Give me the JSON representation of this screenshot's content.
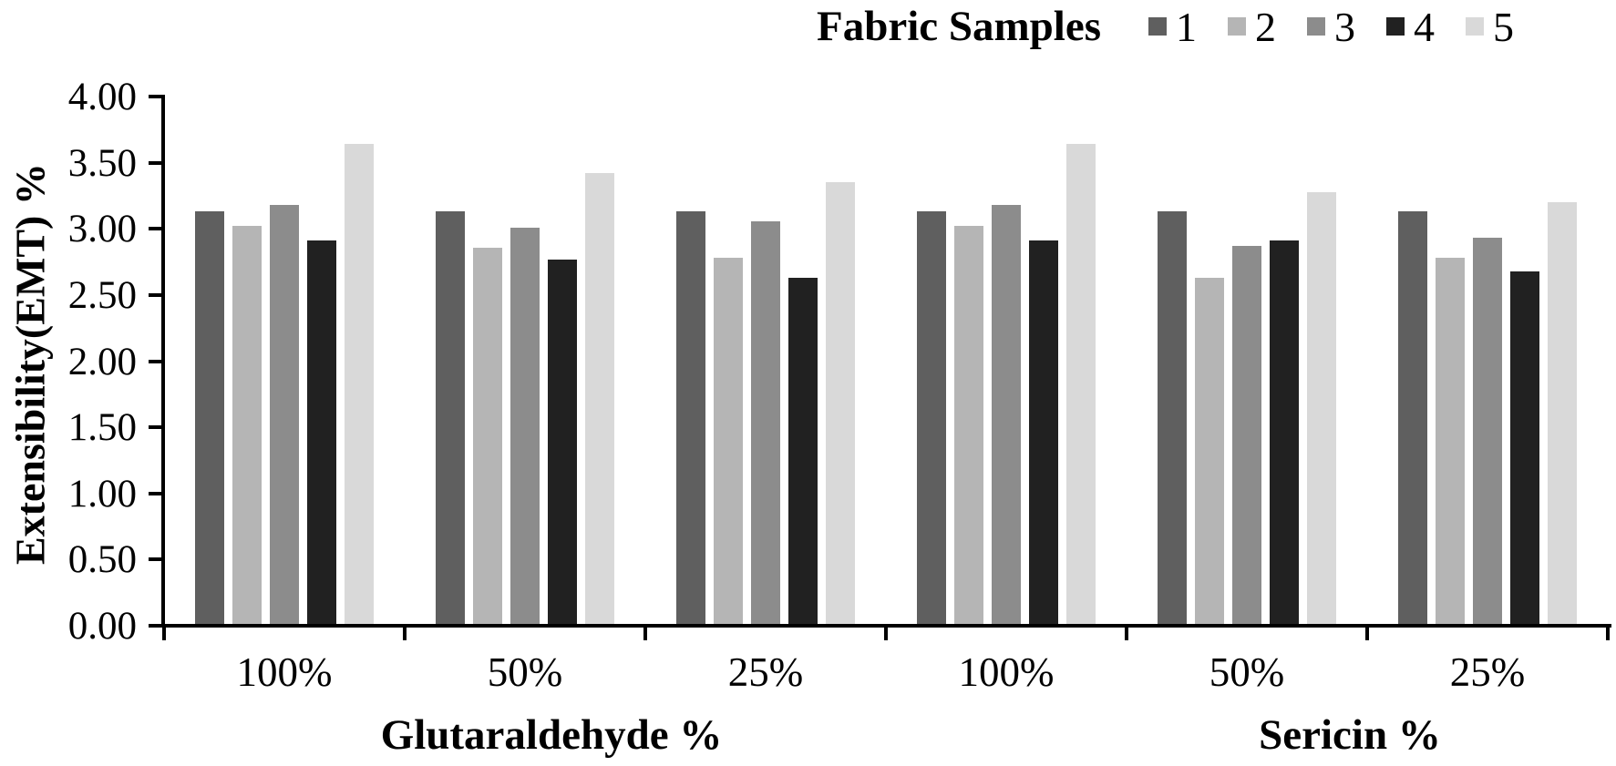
{
  "chart_data": {
    "type": "bar",
    "legend_title": "Fabric Samples",
    "ylabel": "Extensibility(EMT) %",
    "ylim": [
      0,
      4.0
    ],
    "ytick_step": 0.5,
    "ytick_labels": [
      "4.00",
      "3.50",
      "3.00",
      "2.50",
      "2.00",
      "1.50",
      "1.00",
      "0.50",
      "0.00"
    ],
    "categories": [
      "100%",
      "50%",
      "25%",
      "100%",
      "50%",
      "25%"
    ],
    "group_axis_titles": [
      {
        "label": "Glutaraldehyde %"
      },
      {
        "label": "Sericin %"
      }
    ],
    "series": [
      {
        "name": "1",
        "color": "#5f5f5f",
        "values": [
          3.13,
          3.13,
          3.13,
          3.13,
          3.13,
          3.13
        ]
      },
      {
        "name": "2",
        "color": "#b5b5b5",
        "values": [
          3.02,
          2.86,
          2.78,
          3.02,
          2.63,
          2.78
        ]
      },
      {
        "name": "3",
        "color": "#8c8c8c",
        "values": [
          3.18,
          3.01,
          3.06,
          3.18,
          2.87,
          2.93
        ]
      },
      {
        "name": "4",
        "color": "#212121",
        "values": [
          2.91,
          2.77,
          2.63,
          2.91,
          2.91,
          2.68
        ]
      },
      {
        "name": "5",
        "color": "#d9d9d9",
        "values": [
          3.64,
          3.42,
          3.35,
          3.64,
          3.28,
          3.2
        ]
      }
    ],
    "grid": false,
    "legend_position": "top-right",
    "axes_color": "#000000",
    "background_color": "#ffffff"
  }
}
